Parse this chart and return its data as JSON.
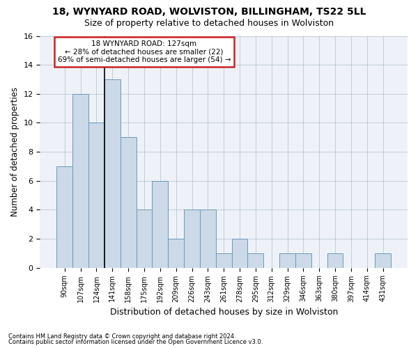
{
  "title": "18, WYNYARD ROAD, WOLVISTON, BILLINGHAM, TS22 5LL",
  "subtitle": "Size of property relative to detached houses in Wolviston",
  "xlabel": "Distribution of detached houses by size in Wolviston",
  "ylabel": "Number of detached properties",
  "categories": [
    "90sqm",
    "107sqm",
    "124sqm",
    "141sqm",
    "158sqm",
    "175sqm",
    "192sqm",
    "209sqm",
    "226sqm",
    "243sqm",
    "261sqm",
    "278sqm",
    "295sqm",
    "312sqm",
    "329sqm",
    "346sqm",
    "363sqm",
    "380sqm",
    "397sqm",
    "414sqm",
    "431sqm"
  ],
  "values": [
    7,
    12,
    10,
    13,
    9,
    4,
    6,
    2,
    4,
    4,
    1,
    2,
    1,
    0,
    1,
    1,
    0,
    1,
    0,
    0,
    1
  ],
  "bar_color": "#ccd9e8",
  "bar_edge_color": "#6699bb",
  "vline_color": "#000000",
  "vline_index": 2.5,
  "annotation_text": "18 WYNYARD ROAD: 127sqm\n← 28% of detached houses are smaller (22)\n69% of semi-detached houses are larger (54) →",
  "annotation_box_facecolor": "#ffffff",
  "annotation_box_edgecolor": "#cc2222",
  "ylim": [
    0,
    16
  ],
  "yticks": [
    0,
    2,
    4,
    6,
    8,
    10,
    12,
    14,
    16
  ],
  "footer1": "Contains HM Land Registry data © Crown copyright and database right 2024.",
  "footer2": "Contains public sector information licensed under the Open Government Licence v3.0.",
  "bg_color": "#ffffff",
  "plot_bg_color": "#eef2f8",
  "grid_color": "#b0bcc8",
  "title_fontsize": 10,
  "subtitle_fontsize": 9
}
